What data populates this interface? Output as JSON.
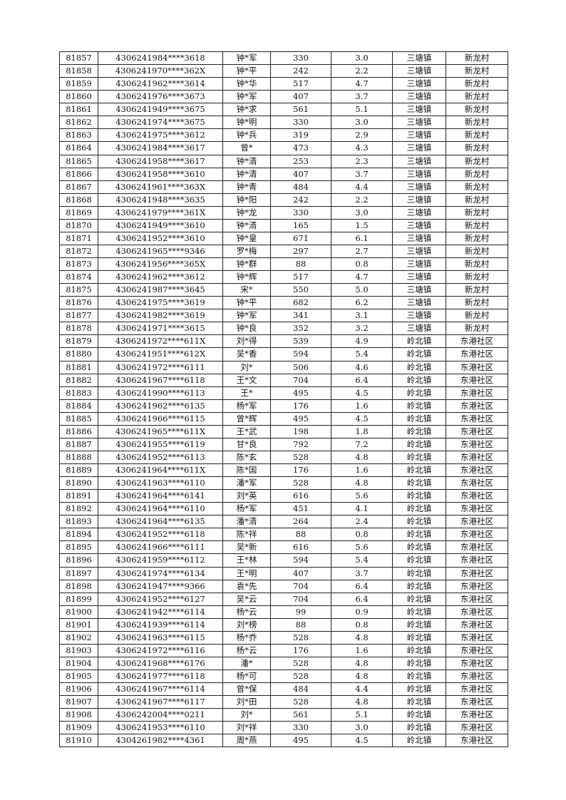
{
  "table": {
    "rows": [
      [
        "81857",
        "4306241984****3618",
        "钟*军",
        "330",
        "3.0",
        "三塘镇",
        "新龙村"
      ],
      [
        "81858",
        "4306241970****362X",
        "钟*平",
        "242",
        "2.2",
        "三塘镇",
        "新龙村"
      ],
      [
        "81859",
        "4306241962****3614",
        "钟*华",
        "517",
        "4.7",
        "三塘镇",
        "新龙村"
      ],
      [
        "81860",
        "4306241976****3673",
        "钟*军",
        "407",
        "3.7",
        "三塘镇",
        "新龙村"
      ],
      [
        "81861",
        "4306241949****3675",
        "钟*求",
        "561",
        "5.1",
        "三塘镇",
        "新龙村"
      ],
      [
        "81862",
        "4306241974****3675",
        "钟*明",
        "330",
        "3.0",
        "三塘镇",
        "新龙村"
      ],
      [
        "81863",
        "4306241975****3612",
        "钟*兵",
        "319",
        "2.9",
        "三塘镇",
        "新龙村"
      ],
      [
        "81864",
        "4306241984****3617",
        "曾*",
        "473",
        "4.3",
        "三塘镇",
        "新龙村"
      ],
      [
        "81865",
        "4306241958****3617",
        "钟*清",
        "253",
        "2.3",
        "三塘镇",
        "新龙村"
      ],
      [
        "81866",
        "4306241958****3610",
        "钟*清",
        "407",
        "3.7",
        "三塘镇",
        "新龙村"
      ],
      [
        "81867",
        "4306241961****363X",
        "钟*青",
        "484",
        "4.4",
        "三塘镇",
        "新龙村"
      ],
      [
        "81868",
        "4306241948****3635",
        "钟*阳",
        "242",
        "2.2",
        "三塘镇",
        "新龙村"
      ],
      [
        "81869",
        "4306241979****361X",
        "钟*龙",
        "330",
        "3.0",
        "三塘镇",
        "新龙村"
      ],
      [
        "81870",
        "4306241949****3610",
        "钟*清",
        "165",
        "1.5",
        "三塘镇",
        "新龙村"
      ],
      [
        "81871",
        "4306241952****3610",
        "钟*皇",
        "671",
        "6.1",
        "三塘镇",
        "新龙村"
      ],
      [
        "81872",
        "4306241965****9346",
        "罗*梅",
        "297",
        "2.7",
        "三塘镇",
        "新龙村"
      ],
      [
        "81873",
        "4306241956****365X",
        "钟*群",
        "88",
        "0.8",
        "三塘镇",
        "新龙村"
      ],
      [
        "81874",
        "4306241962****3612",
        "钟*辉",
        "517",
        "4.7",
        "三塘镇",
        "新龙村"
      ],
      [
        "81875",
        "4306241987****3645",
        "宋*",
        "550",
        "5.0",
        "三塘镇",
        "新龙村"
      ],
      [
        "81876",
        "4306241975****3619",
        "钟*平",
        "682",
        "6.2",
        "三塘镇",
        "新龙村"
      ],
      [
        "81877",
        "4306241982****3619",
        "钟*军",
        "341",
        "3.1",
        "三塘镇",
        "新龙村"
      ],
      [
        "81878",
        "4306241971****3615",
        "钟*良",
        "352",
        "3.2",
        "三塘镇",
        "新龙村"
      ],
      [
        "81879",
        "4306241972****611X",
        "刘*得",
        "539",
        "4.9",
        "岭北镇",
        "东港社区"
      ],
      [
        "81880",
        "4306241951****612X",
        "吴*香",
        "594",
        "5.4",
        "岭北镇",
        "东港社区"
      ],
      [
        "81881",
        "4306241972****6111",
        "刘*",
        "506",
        "4.6",
        "岭北镇",
        "东港社区"
      ],
      [
        "81882",
        "4306241967****6118",
        "王*文",
        "704",
        "6.4",
        "岭北镇",
        "东港社区"
      ],
      [
        "81883",
        "4306241990****6113",
        "王*",
        "495",
        "4.5",
        "岭北镇",
        "东港社区"
      ],
      [
        "81884",
        "4306241962****6135",
        "杨*军",
        "176",
        "1.6",
        "岭北镇",
        "东港社区"
      ],
      [
        "81885",
        "4306241966****6115",
        "曾*辉",
        "495",
        "4.5",
        "岭北镇",
        "东港社区"
      ],
      [
        "81886",
        "4306241965****611X",
        "王*武",
        "198",
        "1.8",
        "岭北镇",
        "东港社区"
      ],
      [
        "81887",
        "4306241955****6119",
        "甘*良",
        "792",
        "7.2",
        "岭北镇",
        "东港社区"
      ],
      [
        "81888",
        "4306241952****6113",
        "陈*玄",
        "528",
        "4.8",
        "岭北镇",
        "东港社区"
      ],
      [
        "81889",
        "4306241964****611X",
        "陈*国",
        "176",
        "1.6",
        "岭北镇",
        "东港社区"
      ],
      [
        "81890",
        "4306241963****6110",
        "潘*军",
        "528",
        "4.8",
        "岭北镇",
        "东港社区"
      ],
      [
        "81891",
        "4306241964****6141",
        "刘*英",
        "616",
        "5.6",
        "岭北镇",
        "东港社区"
      ],
      [
        "81892",
        "4306241964****6110",
        "杨*军",
        "451",
        "4.1",
        "岭北镇",
        "东港社区"
      ],
      [
        "81893",
        "4306241964****6135",
        "潘*清",
        "264",
        "2.4",
        "岭北镇",
        "东港社区"
      ],
      [
        "81894",
        "4306241952****6118",
        "陈*祥",
        "88",
        "0.8",
        "岭北镇",
        "东港社区"
      ],
      [
        "81895",
        "4306241966****6111",
        "吴*新",
        "616",
        "5.6",
        "岭北镇",
        "东港社区"
      ],
      [
        "81896",
        "4306241959****6112",
        "王*林",
        "594",
        "5.4",
        "岭北镇",
        "东港社区"
      ],
      [
        "81897",
        "4306241974****6134",
        "王*明",
        "407",
        "3.7",
        "岭北镇",
        "东港社区"
      ],
      [
        "81898",
        "4306241947****9366",
        "袁*先",
        "704",
        "6.4",
        "岭北镇",
        "东港社区"
      ],
      [
        "81899",
        "4306241952****6127",
        "吴*云",
        "704",
        "6.4",
        "岭北镇",
        "东港社区"
      ],
      [
        "81900",
        "4306241942****6114",
        "杨*云",
        "99",
        "0.9",
        "岭北镇",
        "东港社区"
      ],
      [
        "81901",
        "4306241939****6114",
        "刘*榜",
        "88",
        "0.8",
        "岭北镇",
        "东港社区"
      ],
      [
        "81902",
        "4306241963****6115",
        "杨*乔",
        "528",
        "4.8",
        "岭北镇",
        "东港社区"
      ],
      [
        "81903",
        "4306241972****6116",
        "杨*云",
        "176",
        "1.6",
        "岭北镇",
        "东港社区"
      ],
      [
        "81904",
        "4306241968****6176",
        "潘*",
        "528",
        "4.8",
        "岭北镇",
        "东港社区"
      ],
      [
        "81905",
        "4306241977****6118",
        "杨*可",
        "528",
        "4.8",
        "岭北镇",
        "东港社区"
      ],
      [
        "81906",
        "4306241967****6114",
        "曾*保",
        "484",
        "4.4",
        "岭北镇",
        "东港社区"
      ],
      [
        "81907",
        "4306241967****6117",
        "刘*田",
        "528",
        "4.8",
        "岭北镇",
        "东港社区"
      ],
      [
        "81908",
        "4306242004****0211",
        "刘*",
        "561",
        "5.1",
        "岭北镇",
        "东港社区"
      ],
      [
        "81909",
        "4306241953****6110",
        "刘*祥",
        "330",
        "3.0",
        "岭北镇",
        "东港社区"
      ],
      [
        "81910",
        "4304261982****4361",
        "周*燕",
        "495",
        "4.5",
        "岭北镇",
        "东港社区"
      ]
    ]
  }
}
